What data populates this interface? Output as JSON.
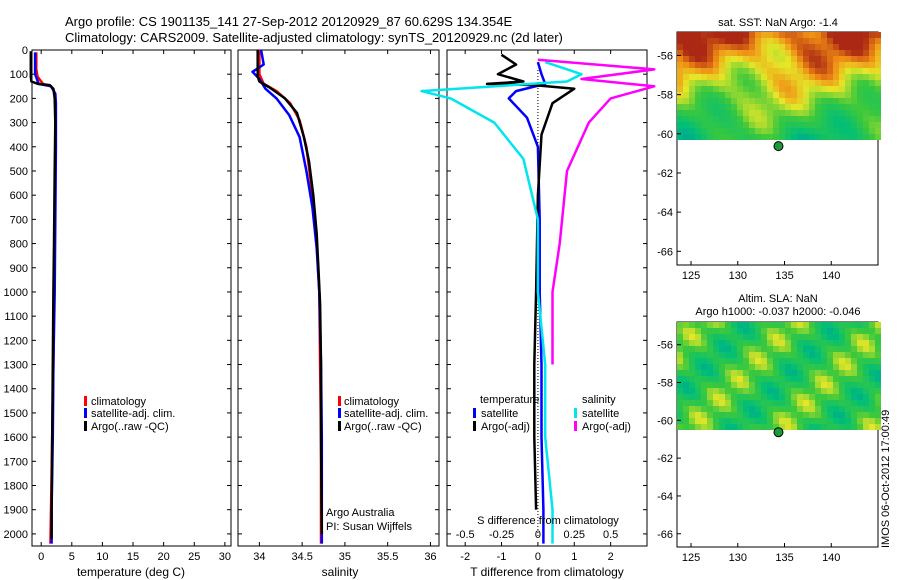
{
  "header": {
    "line1": "Argo profile: CS 1901135_141 27-Sep-2012 20120929_87 60.629S 134.354E",
    "line2": "Climatology: CARS2009. Satellite-adjusted climatology: synTS_20120929.nc (2d later)"
  },
  "colors": {
    "climatology": "#ff0000",
    "satellite": "#0000ff",
    "argo": "#000000",
    "sal_satellite": "#00e5ee",
    "sal_argo": "#ff00ff"
  },
  "chart_data": [
    {
      "type": "line",
      "panel": "temperature",
      "xlabel": "temperature (deg C)",
      "ylabel": "",
      "xlim": [
        -1.5,
        31
      ],
      "ylim": [
        2050,
        0
      ],
      "x_ticks": [
        0,
        5,
        10,
        15,
        20,
        25,
        30
      ],
      "y_ticks": [
        0,
        100,
        200,
        300,
        400,
        500,
        600,
        700,
        800,
        900,
        1000,
        1100,
        1200,
        1300,
        1400,
        1500,
        1600,
        1700,
        1800,
        1900,
        2000
      ],
      "legend": [
        "climatology",
        "satellite-adj. clim.",
        "Argo(..raw -QC)"
      ],
      "series": [
        {
          "name": "climatology",
          "color_key": "climatology",
          "points": [
            [
              -0.8,
              10
            ],
            [
              -0.8,
              80
            ],
            [
              -0.6,
              110
            ],
            [
              0.3,
              140
            ],
            [
              1.6,
              150
            ],
            [
              2.1,
              170
            ],
            [
              2.3,
              200
            ],
            [
              2.3,
              400
            ],
            [
              2.2,
              700
            ],
            [
              2.1,
              1000
            ],
            [
              2.0,
              1300
            ],
            [
              1.8,
              1600
            ],
            [
              1.6,
              1900
            ],
            [
              1.5,
              2040
            ]
          ]
        },
        {
          "name": "satellite-adj. clim.",
          "color_key": "satellite",
          "points": [
            [
              -1.0,
              10
            ],
            [
              -1.0,
              100
            ],
            [
              -0.4,
              140
            ],
            [
              1.6,
              150
            ],
            [
              2.3,
              180
            ],
            [
              2.4,
              220
            ],
            [
              2.4,
              400
            ],
            [
              2.3,
              700
            ],
            [
              2.2,
              1000
            ],
            [
              2.0,
              1300
            ],
            [
              1.9,
              1600
            ],
            [
              1.7,
              1900
            ],
            [
              1.7,
              2040
            ]
          ]
        },
        {
          "name": "Argo(..raw -QC)",
          "color_key": "argo",
          "points": [
            [
              -1.7,
              5
            ],
            [
              -1.7,
              110
            ],
            [
              -1.6,
              130
            ],
            [
              -0.5,
              140
            ],
            [
              1.4,
              145
            ],
            [
              2.0,
              160
            ],
            [
              2.2,
              200
            ],
            [
              2.3,
              300
            ],
            [
              2.2,
              500
            ],
            [
              2.1,
              800
            ],
            [
              2.0,
              1000
            ],
            [
              1.9,
              1300
            ],
            [
              1.8,
              1600
            ],
            [
              1.7,
              1900
            ],
            [
              1.7,
              2020
            ]
          ]
        }
      ]
    },
    {
      "type": "line",
      "panel": "salinity",
      "xlabel": "salinity",
      "ylabel": "",
      "xlim": [
        33.75,
        36.1
      ],
      "ylim": [
        2050,
        0
      ],
      "x_ticks": [
        34,
        34.5,
        35,
        35.5,
        36
      ],
      "legend": [
        "climatology",
        "satellite-adj. clim.",
        "Argo(..raw -QC)"
      ],
      "annotation_lines": [
        "Argo Australia",
        "PI: Susan Wijffels"
      ],
      "series": [
        {
          "name": "climatology",
          "color_key": "climatology",
          "points": [
            [
              34.0,
              0
            ],
            [
              34.0,
              100
            ],
            [
              34.05,
              140
            ],
            [
              34.2,
              170
            ],
            [
              34.36,
              220
            ],
            [
              34.47,
              290
            ],
            [
              34.55,
              400
            ],
            [
              34.62,
              600
            ],
            [
              34.67,
              800
            ],
            [
              34.7,
              1000
            ],
            [
              34.71,
              1300
            ],
            [
              34.72,
              1600
            ],
            [
              34.72,
              2040
            ]
          ]
        },
        {
          "name": "satellite-adj. clim.",
          "color_key": "satellite",
          "points": [
            [
              34.02,
              0
            ],
            [
              34.05,
              60
            ],
            [
              33.92,
              90
            ],
            [
              34.0,
              120
            ],
            [
              34.07,
              160
            ],
            [
              34.2,
              200
            ],
            [
              34.35,
              270
            ],
            [
              34.47,
              360
            ],
            [
              34.55,
              500
            ],
            [
              34.62,
              650
            ],
            [
              34.67,
              820
            ],
            [
              34.7,
              1000
            ],
            [
              34.72,
              1300
            ],
            [
              34.73,
              1600
            ],
            [
              34.73,
              2040
            ]
          ]
        },
        {
          "name": "Argo(..raw -QC)",
          "color_key": "argo",
          "points": [
            [
              33.98,
              0
            ],
            [
              33.98,
              110
            ],
            [
              34.0,
              130
            ],
            [
              34.12,
              155
            ],
            [
              34.3,
              200
            ],
            [
              34.44,
              260
            ],
            [
              34.52,
              360
            ],
            [
              34.58,
              460
            ],
            [
              34.63,
              600
            ],
            [
              34.67,
              760
            ],
            [
              34.69,
              900
            ],
            [
              34.71,
              1050
            ],
            [
              34.72,
              1300
            ],
            [
              34.72,
              1600
            ],
            [
              34.73,
              2000
            ]
          ]
        }
      ]
    },
    {
      "type": "line",
      "panel": "difference",
      "xlabel": "T difference from climatology",
      "xlabel_top": "S difference from climatology",
      "ylabel": "",
      "xlim": [
        -2.5,
        3
      ],
      "ylim": [
        2050,
        0
      ],
      "x_ticks": [
        -2,
        -1,
        0,
        1,
        2
      ],
      "s_ticks": [
        -0.5,
        -0.25,
        0,
        0.25,
        0.5
      ],
      "legend_temperature_title": "temperature",
      "legend_salinity_title": "salinity",
      "legend": [
        "satellite",
        "Argo(-adj)",
        "satellite",
        "Argo(-adj)"
      ],
      "series": [
        {
          "name": "satellite",
          "color_key": "satellite",
          "quantity": "temperature",
          "points": [
            [
              0.0,
              50
            ],
            [
              0.1,
              100
            ],
            [
              0.2,
              140
            ],
            [
              -0.6,
              170
            ],
            [
              -0.8,
              200
            ],
            [
              -0.3,
              280
            ],
            [
              0.0,
              400
            ],
            [
              0.05,
              700
            ],
            [
              0.05,
              1000
            ],
            [
              0.1,
              1300
            ],
            [
              0.1,
              1600
            ],
            [
              0.15,
              1900
            ],
            [
              0.15,
              2040
            ]
          ]
        },
        {
          "name": "Argo(-adj)",
          "color_key": "argo",
          "quantity": "temperature",
          "points": [
            [
              -1.0,
              20
            ],
            [
              -0.6,
              60
            ],
            [
              -1.1,
              100
            ],
            [
              -0.4,
              130
            ],
            [
              -1.4,
              140
            ],
            [
              -0.1,
              145
            ],
            [
              1.0,
              160
            ],
            [
              0.4,
              220
            ],
            [
              0.1,
              350
            ],
            [
              0.0,
              600
            ],
            [
              -0.05,
              1000
            ],
            [
              -0.1,
              1300
            ],
            [
              -0.1,
              1600
            ],
            [
              -0.05,
              1900
            ]
          ]
        },
        {
          "name": "satellite",
          "color_key": "sal_satellite",
          "quantity": "salinity",
          "points": [
            [
              0.05,
              50
            ],
            [
              0.3,
              100
            ],
            [
              0.2,
              130
            ],
            [
              -0.8,
              170
            ],
            [
              -0.6,
              200
            ],
            [
              -0.3,
              300
            ],
            [
              -0.1,
              450
            ],
            [
              0.0,
              700
            ],
            [
              0.0,
              1000
            ],
            [
              0.05,
              1300
            ],
            [
              0.05,
              1600
            ],
            [
              0.1,
              1900
            ],
            [
              0.1,
              2040
            ]
          ]
        },
        {
          "name": "Argo(-adj)",
          "color_key": "sal_argo",
          "quantity": "salinity",
          "points": [
            [
              0.0,
              40
            ],
            [
              0.8,
              80
            ],
            [
              0.3,
              120
            ],
            [
              0.8,
              150
            ],
            [
              0.5,
              200
            ],
            [
              0.35,
              300
            ],
            [
              0.2,
              500
            ],
            [
              0.15,
              800
            ],
            [
              0.1,
              1000
            ],
            [
              0.1,
              1300
            ]
          ]
        }
      ]
    },
    {
      "type": "heatmap",
      "panel": "sst_map",
      "title": "sat. SST: NaN Argo: -1.4",
      "xlim": [
        123.5,
        145
      ],
      "ylim": [
        -66.7,
        -54.8
      ],
      "x_ticks": [
        125,
        130,
        135,
        140
      ],
      "y_ticks": [
        -56,
        -58,
        -60,
        -62,
        -64,
        -66
      ],
      "data_lat_range": [
        -60.2,
        -54.8
      ],
      "argo_marker": [
        134.354,
        -60.629
      ]
    },
    {
      "type": "heatmap",
      "panel": "sla_map",
      "title": "Altim. SLA: NaN",
      "subtitle": "Argo h1000: -0.037 h2000: -0.046",
      "xlim": [
        123.5,
        145
      ],
      "ylim": [
        -66.7,
        -54.8
      ],
      "x_ticks": [
        125,
        130,
        135,
        140
      ],
      "y_ticks": [
        -56,
        -58,
        -60,
        -62,
        -64,
        -66
      ],
      "data_lat_range": [
        -60.2,
        -54.8
      ],
      "argo_marker": [
        134.354,
        -60.629
      ]
    }
  ],
  "footer": {
    "side_text": "IMOS 06-Oct-2012 17:00:49"
  }
}
